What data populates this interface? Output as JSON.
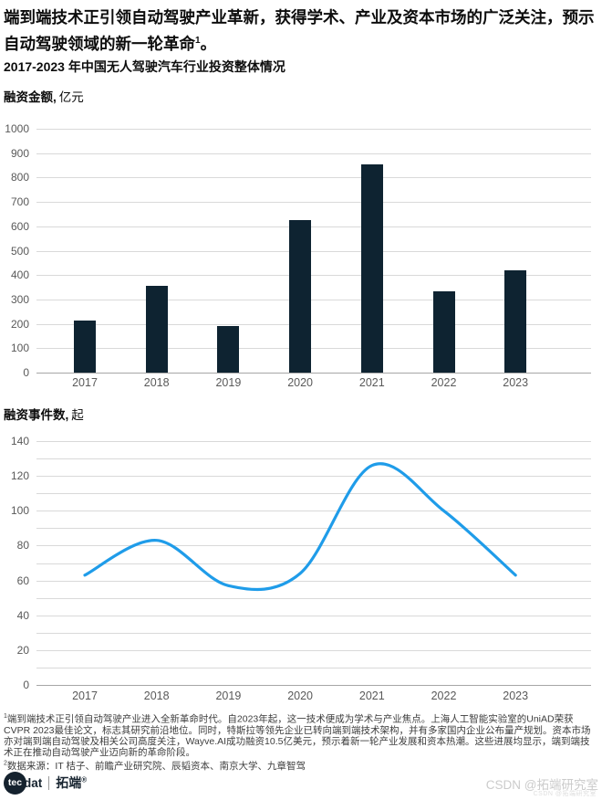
{
  "page": {
    "title": "端到端技术正引领自动驾驶产业革新，获得学术、产业及资本市场的广泛关注，预示自动驾驶领域的新一轮革命",
    "title_superscript": "1",
    "title_period": "。",
    "subtitle": "2017-2023 年中国无人驾驶汽车行业投资整体情况"
  },
  "colors": {
    "bar": "#0e2331",
    "line": "#1f9ce9",
    "grid": "#d9d9d9",
    "axis_zero": "#a6a6a6",
    "tick_text": "#595959",
    "watermark": "#cbcbcb"
  },
  "chart_data": [
    {
      "type": "bar",
      "title": "融资金额, 亿元",
      "label_bold": "融资金额,",
      "label_unit": "亿元",
      "categories": [
        "2017",
        "2018",
        "2019",
        "2020",
        "2021",
        "2022",
        "2023"
      ],
      "values": [
        215,
        355,
        190,
        625,
        855,
        335,
        420
      ],
      "ylabel": "亿元",
      "ylim": [
        0,
        1000
      ],
      "yticks": [
        0,
        100,
        200,
        300,
        400,
        500,
        600,
        700,
        800,
        900,
        1000
      ],
      "grid_step": 100,
      "grid": "on",
      "legend": "none"
    },
    {
      "type": "line",
      "title": "融资事件数, 起",
      "label_bold": "融资事件数,",
      "label_unit": "起",
      "categories": [
        "2017",
        "2018",
        "2019",
        "2020",
        "2021",
        "2022",
        "2023"
      ],
      "values": [
        63,
        83,
        57,
        64,
        126,
        100,
        63
      ],
      "ylabel": "起",
      "ylim": [
        0,
        140
      ],
      "yticks": [
        0,
        20,
        40,
        60,
        80,
        100,
        120,
        140
      ],
      "grid_step": 10,
      "grid": "on",
      "smooth": true,
      "legend": "none"
    }
  ],
  "footnotes": {
    "note1_sup": "1",
    "note1": "端到端技术正引领自动驾驶产业进入全新革命时代。自2023年起，这一技术便成为学术与产业焦点。上海人工智能实验室的UniAD荣获CVPR 2023最佳论文，标志其研究前沿地位。同时，特斯拉等领先企业已转向端到端技术架构，并有多家国内企业公布量产规划。资本市场亦对端到端自动驾驶及相关公司高度关注，Wayve.AI成功融资10.5亿美元，预示着新一轮产业发展和资本热潮。这些进展均显示，端到端技术正在推动自动驾驶产业迈向新的革命阶段。",
    "note2_sup": "2",
    "note2": "数据来源：IT 桔子、前瞻产业研究院、辰韬资本、南京大学、九章智驾"
  },
  "branding": {
    "logo_tec": "tec",
    "logo_dat": "dat",
    "logo_cn": "拓端",
    "logo_reg": "®",
    "watermark": "CSDN @拓端研究室"
  }
}
